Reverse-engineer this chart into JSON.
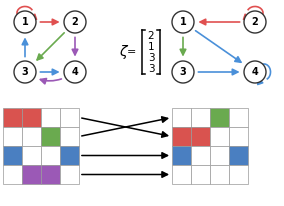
{
  "red": "#d9534f",
  "green": "#6aaa4f",
  "blue": "#4a7fc1",
  "purple": "#9b59b6",
  "white": "#ffffff",
  "node_edge": "#333333",
  "arrow_red": "#e05050",
  "arrow_green": "#6aaa4f",
  "arrow_blue": "#4a90d9",
  "arrow_purple": "#9b59b6",
  "left_grid": [
    [
      "red",
      "red",
      "white",
      "white"
    ],
    [
      "white",
      "white",
      "green",
      "white"
    ],
    [
      "blue",
      "white",
      "white",
      "blue"
    ],
    [
      "white",
      "purple",
      "purple",
      "white"
    ]
  ],
  "right_grid": [
    [
      "white",
      "white",
      "green",
      "white"
    ],
    [
      "red",
      "red",
      "white",
      "white"
    ],
    [
      "blue",
      "white",
      "white",
      "blue"
    ],
    [
      "white",
      "white",
      "white",
      "white"
    ]
  ],
  "zeta_values": [
    "2",
    "1",
    "3",
    "3"
  ],
  "fig_width": 2.84,
  "fig_height": 2.06,
  "dpi": 100
}
